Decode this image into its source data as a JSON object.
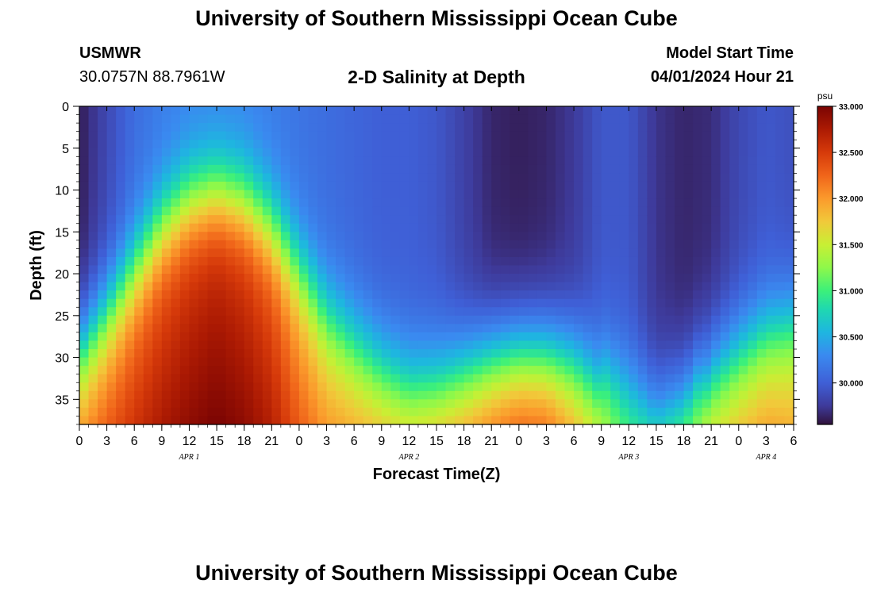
{
  "header": {
    "title": "University of Southern Mississippi Ocean Cube",
    "station": "USMWR",
    "coordinates": "30.0757N  88.7961W",
    "subtitle": "2-D Salinity at Depth",
    "model_start_label": "Model Start Time",
    "model_start_value": "04/01/2024 Hour 21"
  },
  "footer": {
    "title": "University of Southern Mississippi Ocean Cube"
  },
  "chart_data": {
    "type": "heatmap",
    "title": "2-D Salinity at Depth",
    "xlabel": "Forecast Time(Z)",
    "ylabel": "Depth (ft)",
    "x_range_hours": [
      0,
      78
    ],
    "x_ticks": [
      "0",
      "3",
      "6",
      "9",
      "12",
      "15",
      "18",
      "21",
      "0",
      "3",
      "6",
      "9",
      "12",
      "15",
      "18",
      "21",
      "0",
      "3",
      "6",
      "9",
      "12",
      "15",
      "18",
      "21",
      "0",
      "3",
      "6"
    ],
    "date_labels": [
      {
        "label": "APR 1",
        "hour": 12
      },
      {
        "label": "APR 2",
        "hour": 36
      },
      {
        "label": "APR 3",
        "hour": 60
      },
      {
        "label": "APR 4",
        "hour": 75
      }
    ],
    "ylim": [
      0,
      38
    ],
    "y_ticks": [
      0,
      5,
      10,
      15,
      20,
      25,
      30,
      35
    ],
    "colorbar": {
      "unit": "psu",
      "min": 29.55,
      "max": 33.0,
      "tick_values": [
        33.0,
        32.5,
        32.0,
        31.5,
        31.0,
        30.5,
        30.0
      ],
      "tick_labels": [
        "33.000",
        "32.500",
        "32.000",
        "31.500",
        "31.000",
        "30.500",
        "30.000"
      ],
      "stops": [
        {
          "v": 29.55,
          "color": "#30123b"
        },
        {
          "v": 29.75,
          "color": "#3e3a9a"
        },
        {
          "v": 30.0,
          "color": "#3f5fd6"
        },
        {
          "v": 30.3,
          "color": "#3a8af0"
        },
        {
          "v": 30.55,
          "color": "#1eb6e0"
        },
        {
          "v": 30.8,
          "color": "#1fd8b0"
        },
        {
          "v": 31.0,
          "color": "#3cf07a"
        },
        {
          "v": 31.25,
          "color": "#8ef84a"
        },
        {
          "v": 31.5,
          "color": "#c8ef34"
        },
        {
          "v": 31.75,
          "color": "#f1c93a"
        },
        {
          "v": 32.0,
          "color": "#fb9a2c"
        },
        {
          "v": 32.25,
          "color": "#f0651a"
        },
        {
          "v": 32.5,
          "color": "#d63a0a"
        },
        {
          "v": 32.75,
          "color": "#ac1a03"
        },
        {
          "v": 33.0,
          "color": "#7a0403"
        }
      ]
    },
    "surface_salinity_profile": {
      "hours": [
        0,
        3,
        6,
        9,
        12,
        15,
        18,
        21,
        24,
        27,
        30,
        33,
        36,
        39,
        42,
        45,
        48,
        51,
        54,
        57,
        60,
        63,
        66,
        69,
        72,
        75,
        78
      ],
      "surface": [
        29.6,
        29.85,
        30.1,
        30.2,
        30.25,
        30.25,
        30.25,
        30.2,
        30.15,
        30.1,
        30.05,
        30.0,
        30.0,
        29.95,
        29.8,
        29.65,
        29.62,
        29.65,
        29.75,
        29.95,
        29.95,
        29.72,
        29.65,
        29.68,
        29.85,
        29.95,
        29.9
      ],
      "bottom": [
        32.0,
        32.3,
        32.55,
        32.75,
        32.9,
        33.0,
        32.9,
        32.7,
        32.3,
        32.0,
        31.9,
        31.8,
        31.7,
        31.8,
        31.95,
        32.15,
        32.3,
        32.25,
        31.9,
        31.5,
        31.1,
        31.05,
        31.3,
        31.6,
        31.8,
        31.95,
        31.9
      ],
      "halocline_depth_ft": [
        28,
        24,
        19,
        14,
        11,
        10,
        11,
        14,
        19,
        24,
        27,
        29.5,
        31,
        31,
        30,
        29,
        28.5,
        28.5,
        29,
        31,
        32.5,
        35,
        34,
        30,
        28,
        26,
        25
      ]
    }
  }
}
